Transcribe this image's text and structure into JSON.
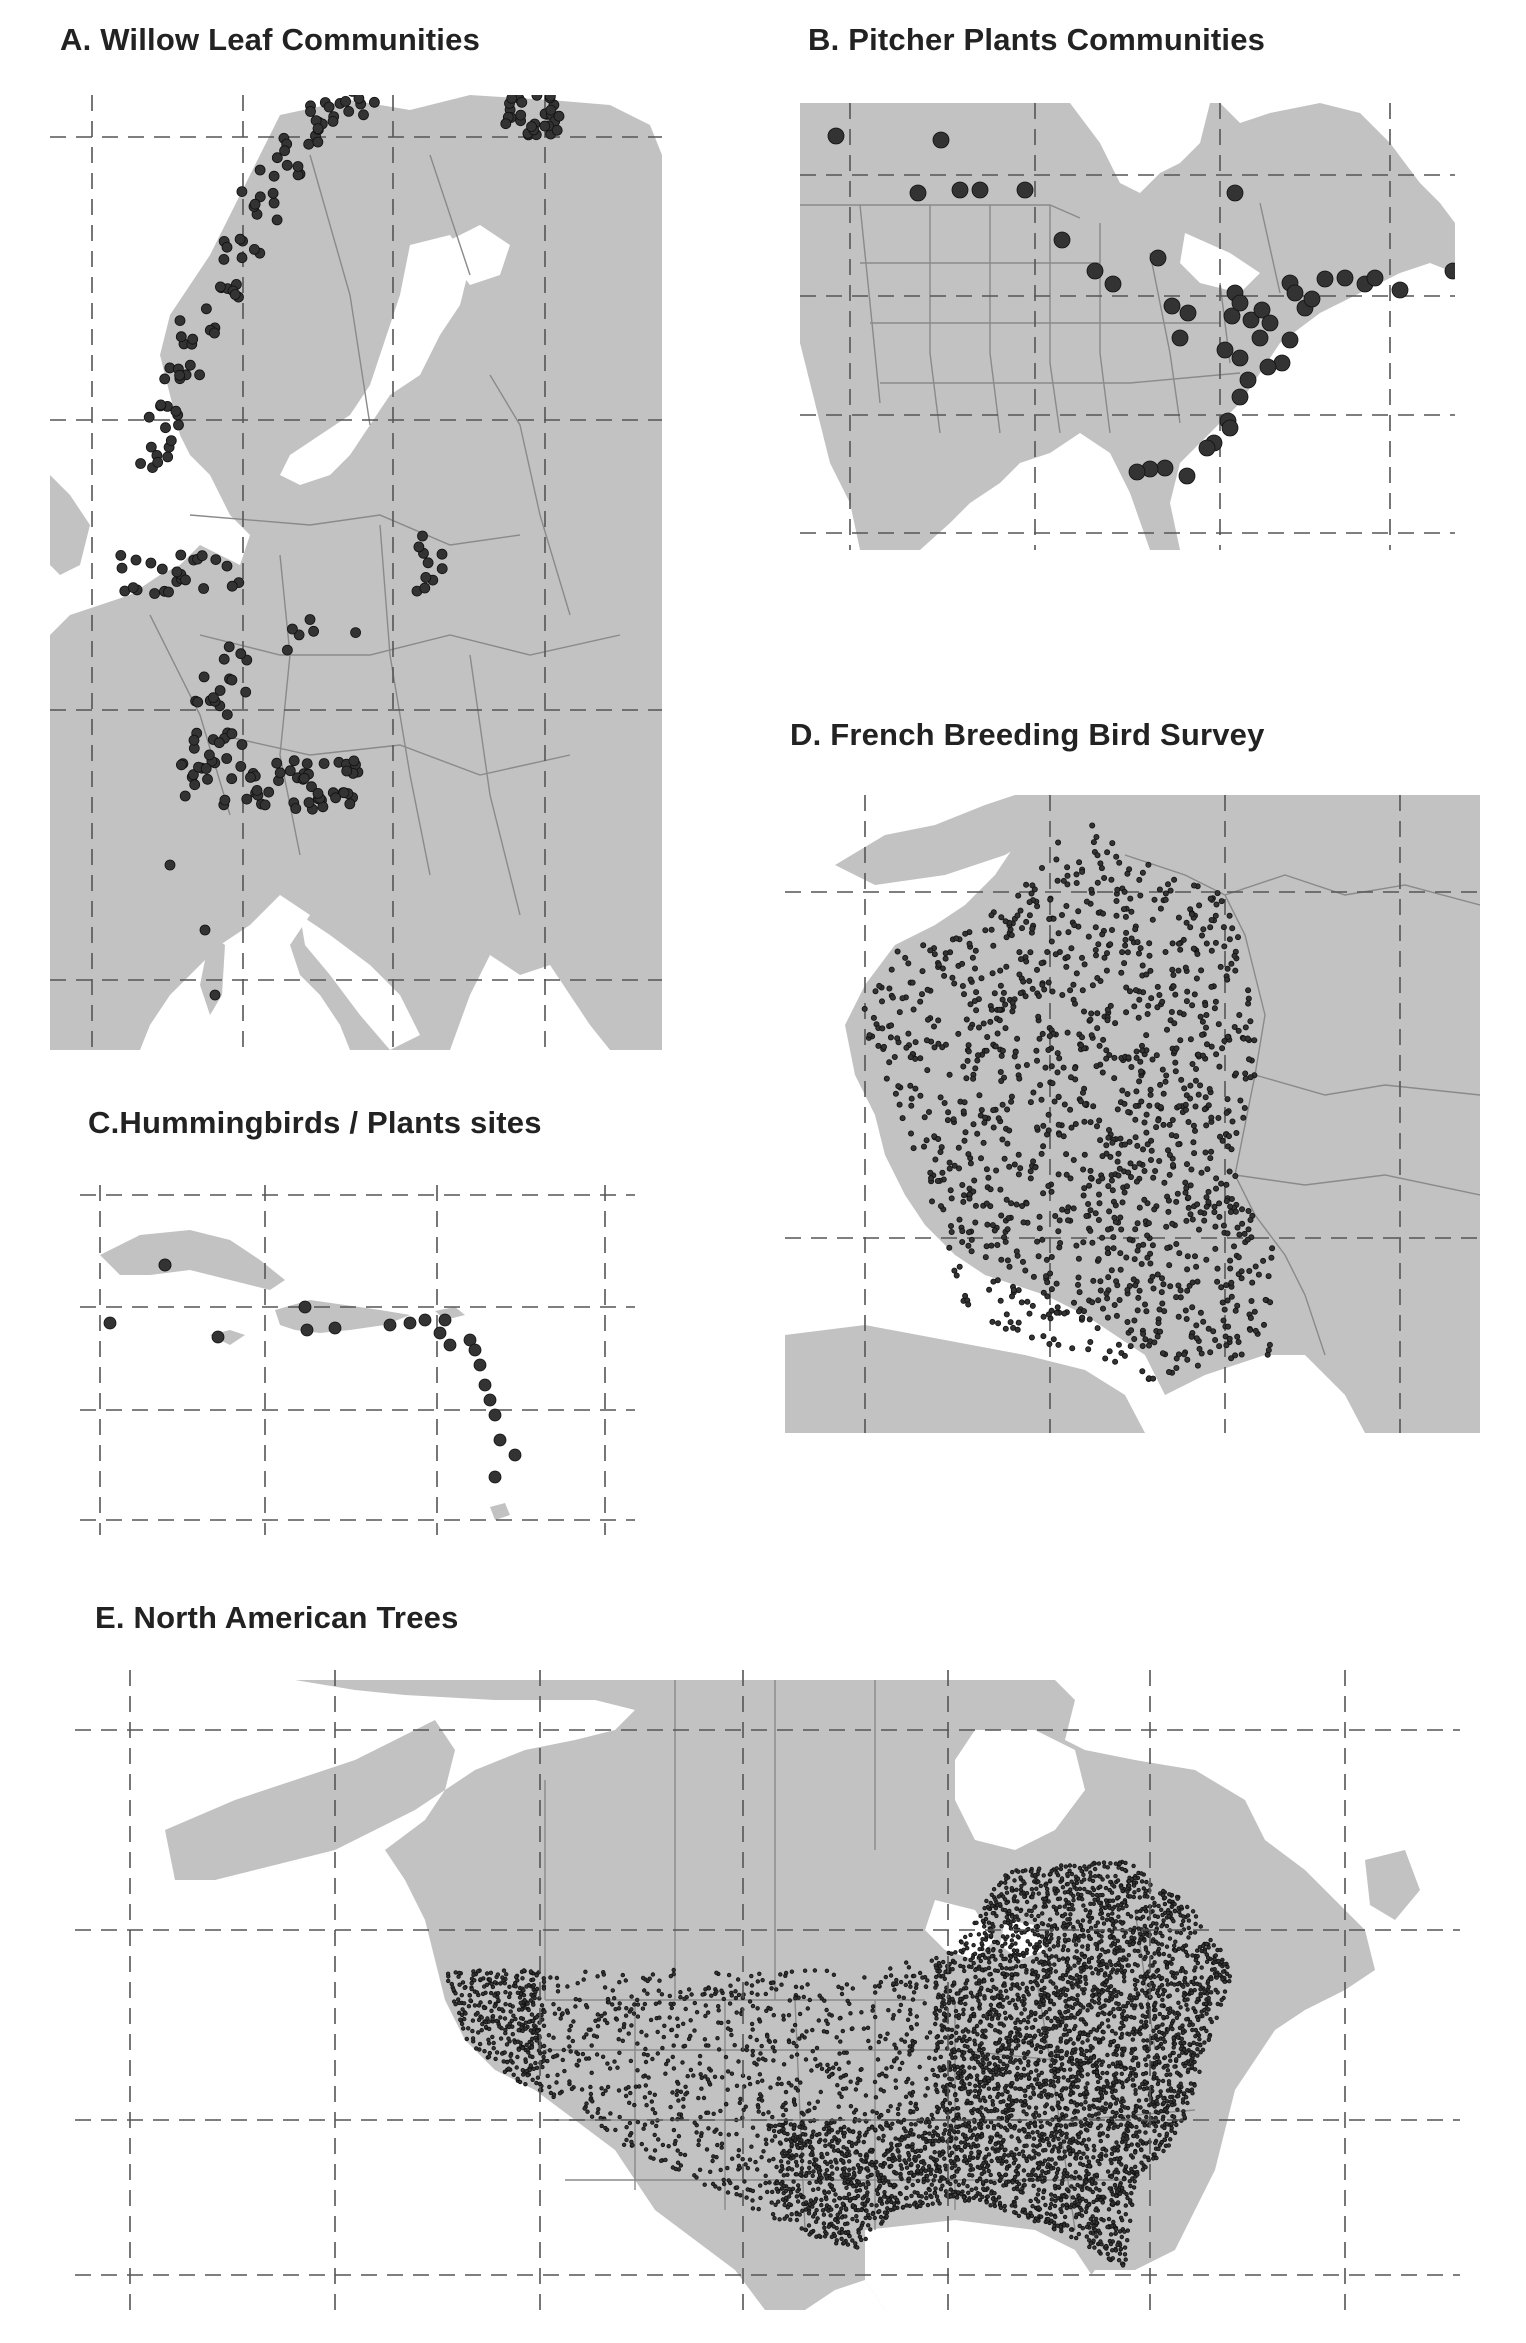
{
  "colors": {
    "land": "#c2c2c2",
    "points": "#333333",
    "borders": "#8a8a8a",
    "graticule": "#555555",
    "background": "#ffffff"
  },
  "panels": [
    {
      "id": "A",
      "title": "A. Willow Leaf Communities"
    },
    {
      "id": "B",
      "title": "B. Pitcher Plants Communities"
    },
    {
      "id": "C",
      "title": "C.Hummingbirds / Plants sites"
    },
    {
      "id": "D",
      "title": "D. French Breeding Bird Survey"
    },
    {
      "id": "E",
      "title": "E. North American Trees"
    }
  ]
}
